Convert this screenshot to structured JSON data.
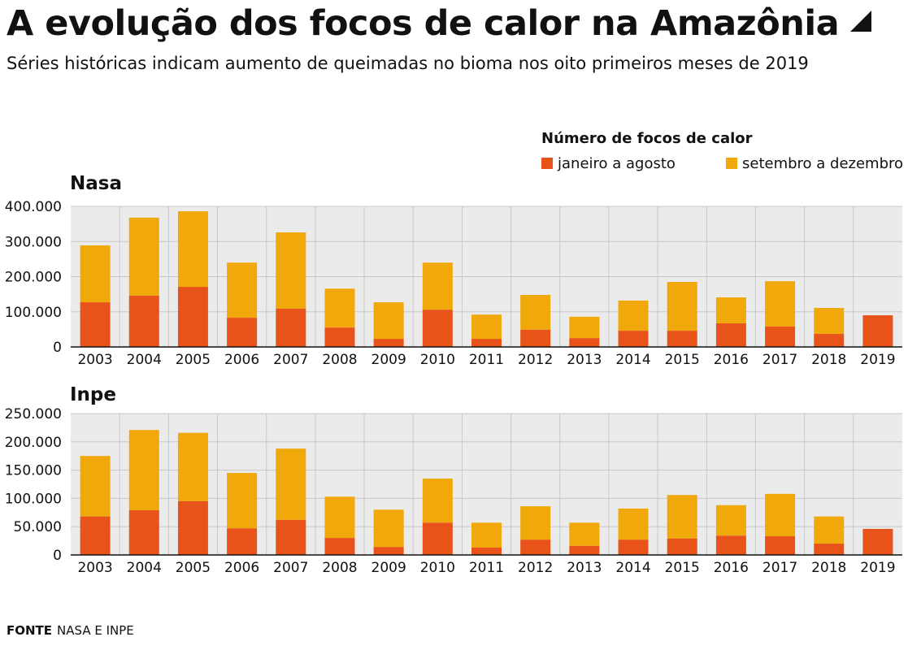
{
  "header": {
    "title": "A evolução dos focos de calor na Amazônia",
    "title_icon": "corner-triangle-icon",
    "subtitle": "Séries históricas indicam aumento de queimadas no bioma nos oito primeiros meses de 2019"
  },
  "legend": {
    "title": "Número de focos de calor",
    "items": [
      {
        "label": "janeiro a agosto",
        "color": "#e8531a"
      },
      {
        "label": "setembro a dezembro",
        "color": "#f0a80a"
      }
    ]
  },
  "colors": {
    "jan_ago": "#e8531a",
    "set_dez": "#f0a80a",
    "plot_bg": "#ebebeb",
    "grid": "#c8c8c8"
  },
  "chart_data": [
    {
      "type": "bar",
      "stacked": true,
      "title": "Nasa",
      "xlabel": "",
      "ylabel": "Número de focos de calor",
      "categories": [
        "2003",
        "2004",
        "2005",
        "2006",
        "2007",
        "2008",
        "2009",
        "2010",
        "2011",
        "2012",
        "2013",
        "2014",
        "2015",
        "2016",
        "2017",
        "2018",
        "2019"
      ],
      "ylim": [
        0,
        400000
      ],
      "yticks": [
        0,
        100000,
        200000,
        300000,
        400000
      ],
      "ytick_labels": [
        "0",
        "100.000",
        "200.000",
        "300.000",
        "400.000"
      ],
      "grid": true,
      "legend": "top-right",
      "series": [
        {
          "name": "janeiro a agosto",
          "values": [
            127000,
            146000,
            171000,
            83000,
            109000,
            55000,
            23000,
            106000,
            23000,
            49000,
            25000,
            46000,
            46000,
            67000,
            58000,
            37000,
            90000
          ]
        },
        {
          "name": "setembro a dezembro",
          "values": [
            162000,
            222000,
            215000,
            157000,
            217000,
            111000,
            104000,
            134000,
            69000,
            99000,
            61000,
            86000,
            139000,
            74000,
            129000,
            74000,
            0
          ]
        }
      ]
    },
    {
      "type": "bar",
      "stacked": true,
      "title": "Inpe",
      "xlabel": "",
      "ylabel": "Número de focos de calor",
      "categories": [
        "2003",
        "2004",
        "2005",
        "2006",
        "2007",
        "2008",
        "2009",
        "2010",
        "2011",
        "2012",
        "2013",
        "2014",
        "2015",
        "2016",
        "2017",
        "2018",
        "2019"
      ],
      "ylim": [
        0,
        250000
      ],
      "yticks": [
        0,
        50000,
        100000,
        150000,
        200000,
        250000
      ],
      "ytick_labels": [
        "0",
        "50.000",
        "100.000",
        "150.000",
        "200.000",
        "250.000"
      ],
      "grid": true,
      "legend": "top-right",
      "series": [
        {
          "name": "janeiro a agosto",
          "values": [
            68000,
            79000,
            95000,
            47000,
            62000,
            30000,
            14000,
            57000,
            13000,
            27000,
            16000,
            27000,
            29000,
            34000,
            33000,
            20000,
            46000
          ]
        },
        {
          "name": "setembro a dezembro",
          "values": [
            107000,
            142000,
            121000,
            98000,
            126000,
            73000,
            66000,
            78000,
            44000,
            59000,
            41000,
            55000,
            77000,
            54000,
            75000,
            48000,
            0
          ]
        }
      ]
    }
  ],
  "footer": {
    "source_label": "FONTE",
    "source_text": "NASA E INPE"
  }
}
